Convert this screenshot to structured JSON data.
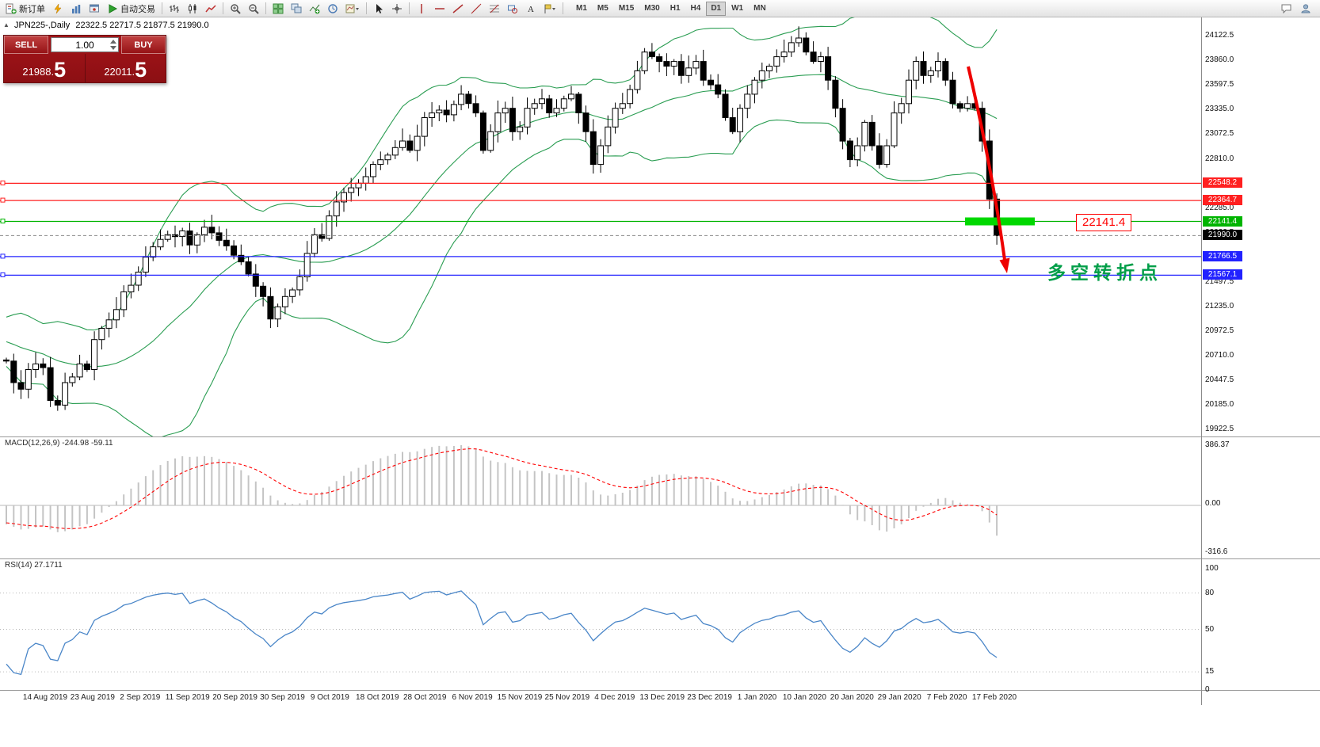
{
  "toolbar": {
    "new_order": "新订单",
    "autotrading": "自动交易",
    "timeframes": [
      "M1",
      "M5",
      "M15",
      "M30",
      "H1",
      "H4",
      "D1",
      "W1",
      "MN"
    ],
    "active_timeframe": "D1"
  },
  "trade_panel": {
    "sell_label": "SELL",
    "buy_label": "BUY",
    "volume": "1.00",
    "sell_price": "21988.5",
    "sell_price_small": "21988.",
    "sell_price_big": "5",
    "buy_price": "22011.5",
    "buy_price_small": "22011.",
    "buy_price_big": "5"
  },
  "chart": {
    "symbol_period": "JPN225-,Daily",
    "ohlc_text": "22322.5 22717.5 21877.5 21990.0",
    "callout": "22141.4",
    "annotation": "多空转折点",
    "hlines": [
      {
        "price": 22548.2,
        "label": "22548.2",
        "color": "#ff2020",
        "type": "resistance"
      },
      {
        "price": 22364.7,
        "label": "22364.7",
        "color": "#ff2020",
        "type": "resistance"
      },
      {
        "price": 22141.4,
        "label": "22141.4",
        "color": "#00b400",
        "type": "pivot"
      },
      {
        "price": 21990.0,
        "label": "21990.0",
        "color": "#000000",
        "type": "current"
      },
      {
        "price": 21766.5,
        "label": "21766.5",
        "color": "#2222ff",
        "type": "support"
      },
      {
        "price": 21567.1,
        "label": "21567.1",
        "color": "#2222ff",
        "type": "support"
      }
    ],
    "y_axis": [
      "24122.5",
      "23860.0",
      "23597.5",
      "23335.0",
      "23072.5",
      "22810.0",
      "22547.5",
      "22285.0",
      "22022.5",
      "21760.0",
      "21497.5",
      "21235.0",
      "20972.5",
      "20710.0",
      "20447.5",
      "20185.0",
      "19922.5"
    ]
  },
  "macd_panel": {
    "label": "MACD(12,26,9) -244.98 -59.11",
    "macd_value": -244.98,
    "signal_value": -59.11,
    "axis": [
      "386.37",
      "0.00",
      "-316.6"
    ]
  },
  "rsi_panel": {
    "label": "RSI(14) 27.1711",
    "value": 27.1711,
    "axis": [
      "100",
      "80",
      "50",
      "15",
      "0"
    ],
    "levels": [
      80,
      50,
      15
    ]
  },
  "colors": {
    "resistance": "#ff2020",
    "support": "#2222ff",
    "pivot_line": "#00b400",
    "pivot_fill": "#00d800",
    "arrow": "#ee0000",
    "annotation": "#009e48",
    "panel_red": "#9a1217",
    "bollinger": "#2a9d52",
    "macd_hist": "#c4c4c4",
    "macd_signal": "#ff0000",
    "rsi_line": "#4a86c8"
  },
  "chart_data": {
    "type": "candlestick",
    "symbol": "JPN225-",
    "period": "Daily",
    "ohlc": {
      "open": 22322.5,
      "high": 22717.5,
      "low": 21877.5,
      "close": 21990.0
    },
    "x_labels": [
      "14 Aug 2019",
      "23 Aug 2019",
      "2 Sep 2019",
      "11 Sep 2019",
      "20 Sep 2019",
      "30 Sep 2019",
      "9 Oct 2019",
      "18 Oct 2019",
      "28 Oct 2019",
      "6 Nov 2019",
      "15 Nov 2019",
      "25 Nov 2019",
      "4 Dec 2019",
      "13 Dec 2019",
      "23 Dec 2019",
      "1 Jan 2020",
      "10 Jan 2020",
      "20 Jan 2020",
      "29 Jan 2020",
      "7 Feb 2020",
      "17 Feb 2020"
    ],
    "ylim": [
      19845,
      24320
    ],
    "closes": [
      20650,
      20420,
      20350,
      20560,
      20620,
      20580,
      20230,
      20180,
      20420,
      20480,
      20620,
      20560,
      20880,
      21000,
      21090,
      21200,
      21390,
      21460,
      21600,
      21760,
      21870,
      21950,
      22000,
      21980,
      22040,
      21890,
      22000,
      22080,
      22020,
      21940,
      21880,
      21780,
      21710,
      21580,
      21450,
      21340,
      21100,
      21230,
      21340,
      21410,
      21550,
      21800,
      22000,
      21960,
      22200,
      22350,
      22450,
      22500,
      22550,
      22620,
      22750,
      22800,
      22850,
      22930,
      23000,
      22900,
      23050,
      23250,
      23300,
      23330,
      23280,
      23390,
      23500,
      23400,
      23300,
      22900,
      23100,
      23300,
      23350,
      23100,
      23150,
      23350,
      23400,
      23450,
      23300,
      23350,
      23450,
      23500,
      23300,
      23100,
      22750,
      22950,
      23150,
      23350,
      23400,
      23550,
      23750,
      23950,
      23900,
      23850,
      23800,
      23850,
      23700,
      23780,
      23850,
      23650,
      23600,
      23500,
      23250,
      23100,
      23350,
      23500,
      23650,
      23750,
      23800,
      23900,
      23950,
      24050,
      24100,
      23950,
      23850,
      23900,
      23650,
      23350,
      23000,
      22800,
      22950,
      23200,
      22950,
      22750,
      22950,
      23300,
      23400,
      23650,
      23850,
      23700,
      23750,
      23850,
      23650,
      23400,
      23350,
      23400,
      23350,
      23000,
      22380,
      21990
    ],
    "indicators": [
      {
        "name": "Bollinger Bands",
        "period": 20,
        "deviation": 2
      },
      {
        "name": "MACD",
        "fast": 12,
        "slow": 26,
        "signal": 9
      },
      {
        "name": "RSI",
        "period": 14
      }
    ]
  }
}
